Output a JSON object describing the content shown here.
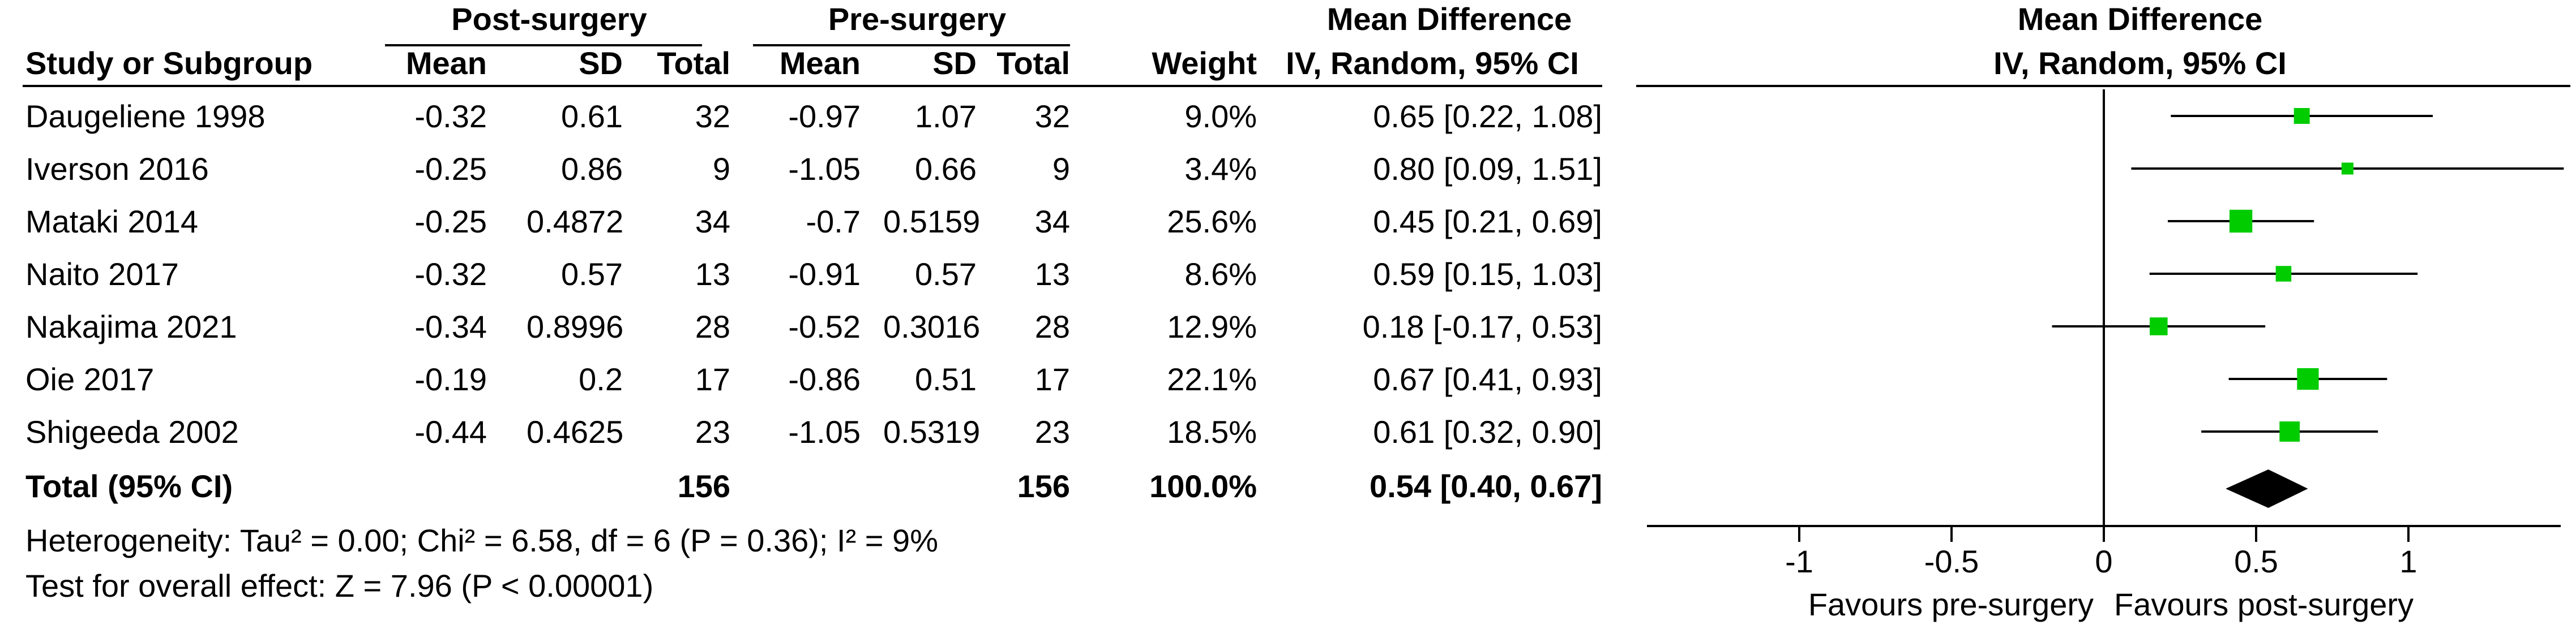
{
  "headers": {
    "group1": "Post-surgery",
    "group2": "Pre-surgery",
    "effect": "Mean Difference",
    "effect_method": "IV, Random, 95% CI",
    "plot_title": "Mean Difference",
    "plot_method": "IV, Random, 95% CI",
    "study": "Study or Subgroup",
    "mean": "Mean",
    "sd": "SD",
    "total": "Total",
    "weight": "Weight"
  },
  "studies": [
    {
      "name": "Daugeliene 1998",
      "post_mean": "-0.32",
      "post_sd": "0.61",
      "post_total": "32",
      "pre_mean": "-0.97",
      "pre_sd": "1.07",
      "pre_total": "32",
      "weight": "9.0%",
      "ci_text": "0.65 [0.22, 1.08]"
    },
    {
      "name": "Iverson 2016",
      "post_mean": "-0.25",
      "post_sd": "0.86",
      "post_total": "9",
      "pre_mean": "-1.05",
      "pre_sd": "0.66",
      "pre_total": "9",
      "weight": "3.4%",
      "ci_text": "0.80 [0.09, 1.51]"
    },
    {
      "name": "Mataki 2014",
      "post_mean": "-0.25",
      "post_sd": "0.4872",
      "post_total": "34",
      "pre_mean": "-0.7",
      "pre_sd": "0.5159",
      "pre_total": "34",
      "weight": "25.6%",
      "ci_text": "0.45 [0.21, 0.69]"
    },
    {
      "name": "Naito 2017",
      "post_mean": "-0.32",
      "post_sd": "0.57",
      "post_total": "13",
      "pre_mean": "-0.91",
      "pre_sd": "0.57",
      "pre_total": "13",
      "weight": "8.6%",
      "ci_text": "0.59 [0.15, 1.03]"
    },
    {
      "name": "Nakajima 2021",
      "post_mean": "-0.34",
      "post_sd": "0.8996",
      "post_total": "28",
      "pre_mean": "-0.52",
      "pre_sd": "0.3016",
      "pre_total": "28",
      "weight": "12.9%",
      "ci_text": "0.18 [-0.17, 0.53]"
    },
    {
      "name": "Oie 2017",
      "post_mean": "-0.19",
      "post_sd": "0.2",
      "post_total": "17",
      "pre_mean": "-0.86",
      "pre_sd": "0.51",
      "pre_total": "17",
      "weight": "22.1%",
      "ci_text": "0.67 [0.41, 0.93]"
    },
    {
      "name": "Shigeeda 2002",
      "post_mean": "-0.44",
      "post_sd": "0.4625",
      "post_total": "23",
      "pre_mean": "-1.05",
      "pre_sd": "0.5319",
      "pre_total": "23",
      "weight": "18.5%",
      "ci_text": "0.61 [0.32, 0.90]"
    }
  ],
  "total": {
    "label": "Total (95% CI)",
    "post_total": "156",
    "pre_total": "156",
    "weight": "100.0%",
    "ci_text": "0.54 [0.40, 0.67]"
  },
  "heterogeneity": "Heterogeneity: Tau² = 0.00; Chi² = 6.58, df = 6 (P = 0.36); I² = 9%",
  "overall_effect": "Test for overall effect: Z = 7.96 (P < 0.00001)",
  "chart_data": {
    "type": "scatter",
    "subtype": "forest",
    "x_ticks": [
      {
        "value": -1,
        "label": "-1"
      },
      {
        "value": -0.5,
        "label": "-0.5"
      },
      {
        "value": 0,
        "label": "0"
      },
      {
        "value": 0.5,
        "label": "0.5"
      },
      {
        "value": 1,
        "label": "1"
      }
    ],
    "xlim": [
      -1.5,
      1.5
    ],
    "left_label": "Favours pre-surgery",
    "right_label": "Favours post-surgery",
    "studies": [
      {
        "md": 0.65,
        "lo": 0.22,
        "hi": 1.08,
        "weight": 9.0
      },
      {
        "md": 0.8,
        "lo": 0.09,
        "hi": 1.51,
        "weight": 3.4
      },
      {
        "md": 0.45,
        "lo": 0.21,
        "hi": 0.69,
        "weight": 25.6
      },
      {
        "md": 0.59,
        "lo": 0.15,
        "hi": 1.03,
        "weight": 8.6
      },
      {
        "md": 0.18,
        "lo": -0.17,
        "hi": 0.53,
        "weight": 12.9
      },
      {
        "md": 0.67,
        "lo": 0.41,
        "hi": 0.93,
        "weight": 22.1
      },
      {
        "md": 0.61,
        "lo": 0.32,
        "hi": 0.9,
        "weight": 18.5
      }
    ],
    "pooled": {
      "md": 0.54,
      "lo": 0.4,
      "hi": 0.67
    },
    "marker_color": "#00cc00",
    "diamond_color": "#000000"
  }
}
